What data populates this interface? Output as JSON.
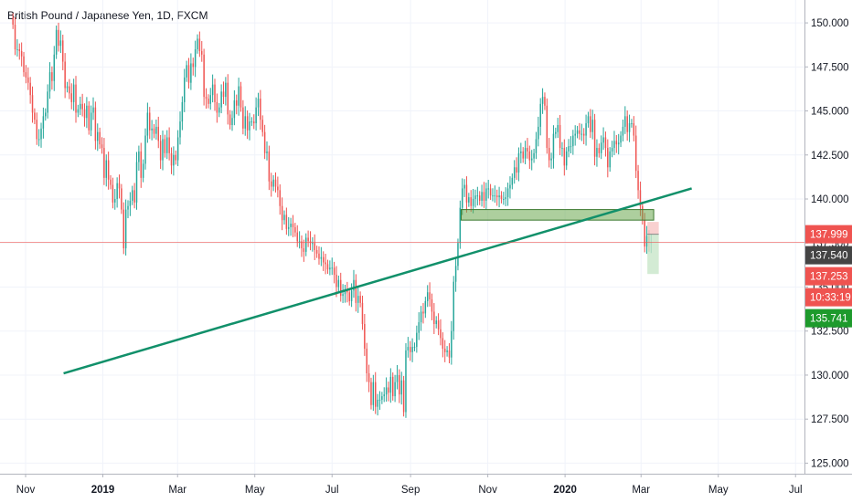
{
  "title": "British Pound / Japanese Yen, 1D, FXCM",
  "colors": {
    "up": "#26a69a",
    "down": "#ef5350",
    "grid": "#f0f3fa",
    "trendline": "#11906a",
    "zone": "#6aa84f",
    "current_price_line": "#ef5350"
  },
  "chart_data": {
    "type": "candlestick",
    "symbol": "British Pound / Japanese Yen",
    "interval": "1D",
    "source": "FXCM",
    "x_labels": [
      {
        "label": "Nov",
        "bold": false
      },
      {
        "label": "2019",
        "bold": true
      },
      {
        "label": "Mar",
        "bold": false
      },
      {
        "label": "May",
        "bold": false
      },
      {
        "label": "Jul",
        "bold": false
      },
      {
        "label": "Sep",
        "bold": false
      },
      {
        "label": "Nov",
        "bold": false
      },
      {
        "label": "2020",
        "bold": true
      },
      {
        "label": "Mar",
        "bold": false
      },
      {
        "label": "May",
        "bold": false
      },
      {
        "label": "Jul",
        "bold": false
      }
    ],
    "y_ticks": [
      "150.000",
      "147.500",
      "145.000",
      "142.500",
      "140.000",
      "137.500",
      "135.000",
      "132.500",
      "130.000",
      "127.500",
      "125.000"
    ],
    "ylim": [
      124.4,
      151.3
    ],
    "closes": [
      149.9,
      148.5,
      148.5,
      148.4,
      148.1,
      147.2,
      146.9,
      146.6,
      145.9,
      144.9,
      144.5,
      143.4,
      143.4,
      144.0,
      144.7,
      144.9,
      146.1,
      147.2,
      146.7,
      148.2,
      149.6,
      148.7,
      149.0,
      147.8,
      146.3,
      146.4,
      146.0,
      145.5,
      146.5,
      144.9,
      145.1,
      145.4,
      145.1,
      144.6,
      145.3,
      143.9,
      144.9,
      145.2,
      143.3,
      143.8,
      143.1,
      142.9,
      141.2,
      142.2,
      141.1,
      140.8,
      139.8,
      140.0,
      140.9,
      140.6,
      139.4,
      137.2,
      139.4,
      139.6,
      139.9,
      140.5,
      139.8,
      142.1,
      142.7,
      141.2,
      142.0,
      143.6,
      144.9,
      143.9,
      144.0,
      143.7,
      144.1,
      143.3,
      142.2,
      143.4,
      142.6,
      143.5,
      142.6,
      141.9,
      142.5,
      142.2,
      143.5,
      144.4,
      145.5,
      146.9,
      147.6,
      146.6,
      147.7,
      147.5,
      148.5,
      149.1,
      148.4,
      148.2,
      145.8,
      145.7,
      145.4,
      145.9,
      146.5,
      145.5,
      144.9,
      145.2,
      146.1,
      145.8,
      146.6,
      144.8,
      144.2,
      144.6,
      145.6,
      145.3,
      146.4,
      145.2,
      144.0,
      144.7,
      143.9,
      144.4,
      144.4,
      144.3,
      145.2,
      145.7,
      144.5,
      143.8,
      142.6,
      142.7,
      141.0,
      140.7,
      141.1,
      140.7,
      140.5,
      139.6,
      138.8,
      139.1,
      138.3,
      138.4,
      138.6,
      138.4,
      138.1,
      137.6,
      137.6,
      137.2,
      137.0,
      137.8,
      137.6,
      137.5,
      137.5,
      137.1,
      136.9,
      136.6,
      136.7,
      136.4,
      136.3,
      136.0,
      136.1,
      136.1,
      135.7,
      135.0,
      135.4,
      134.5,
      134.6,
      134.8,
      134.7,
      134.2,
      134.8,
      135.4,
      134.1,
      134.5,
      134.1,
      132.9,
      131.5,
      130.1,
      129.6,
      128.3,
      129.6,
      128.2,
      128.6,
      128.6,
      128.8,
      128.9,
      129.3,
      129.0,
      129.9,
      128.8,
      129.6,
      130.0,
      128.9,
      129.7,
      127.9,
      131.4,
      131.6,
      131.3,
      131.6,
      131.6,
      132.4,
      133.0,
      133.6,
      133.5,
      134.2,
      134.7,
      134.3,
      133.6,
      132.9,
      133.1,
      132.6,
      132.1,
      131.5,
      131.3,
      131.4,
      131.0,
      132.5,
      135.3,
      136.2,
      137.5,
      139.5,
      140.6,
      140.8,
      139.8,
      140.1,
      139.6,
      140.0,
      140.2,
      140.2,
      139.9,
      140.4,
      139.9,
      140.6,
      140.6,
      140.2,
      140.2,
      140.2,
      140.1,
      140.2,
      140.0,
      140.0,
      140.1,
      140.6,
      140.8,
      141.2,
      141.8,
      141.5,
      142.6,
      142.7,
      142.3,
      142.9,
      142.7,
      142.2,
      142.3,
      142.6,
      143.4,
      144.1,
      145.4,
      145.8,
      145.3,
      142.9,
      142.2,
      142.3,
      143.7,
      143.8,
      144.2,
      142.9,
      142.9,
      141.9,
      142.7,
      143.0,
      143.0,
      143.6,
      143.7,
      143.9,
      143.7,
      143.7,
      143.6,
      144.3,
      144.7,
      143.8,
      144.5,
      142.4,
      142.9,
      142.6,
      143.2,
      143.5,
      142.9,
      141.8,
      142.7,
      142.9,
      143.3,
      143.1,
      143.2,
      143.6,
      144.1,
      144.7,
      143.8,
      144.3,
      144.3,
      143.6,
      141.6,
      140.5,
      139.6,
      138.8,
      137.3,
      137.9,
      137.5,
      137.5
    ],
    "last_candle_range": {
      "open": 137.5,
      "high": 138.0,
      "low": 137.3,
      "close": 137.54
    },
    "trendline": {
      "start": {
        "date": "2018-12-01",
        "price": 130.1
      },
      "end": {
        "date": "2020-04-10",
        "price": 140.6
      }
    },
    "zone": {
      "from": "2019-10-11",
      "to": "2020-03-11",
      "top": 139.4,
      "bottom": 138.8
    },
    "position": {
      "entry": 137.999,
      "stop": 138.7,
      "target": 135.741
    },
    "price_tags": [
      {
        "value": "137.999",
        "color": "#ef5350"
      },
      {
        "value": "137.540",
        "color": "#444444"
      },
      {
        "value": "137.253",
        "color": "#ef5350"
      },
      {
        "value": "10:33:19",
        "color": "#ef5350"
      },
      {
        "value": "135.741",
        "color": "#1e9a2c"
      }
    ],
    "current_price": 137.54
  }
}
